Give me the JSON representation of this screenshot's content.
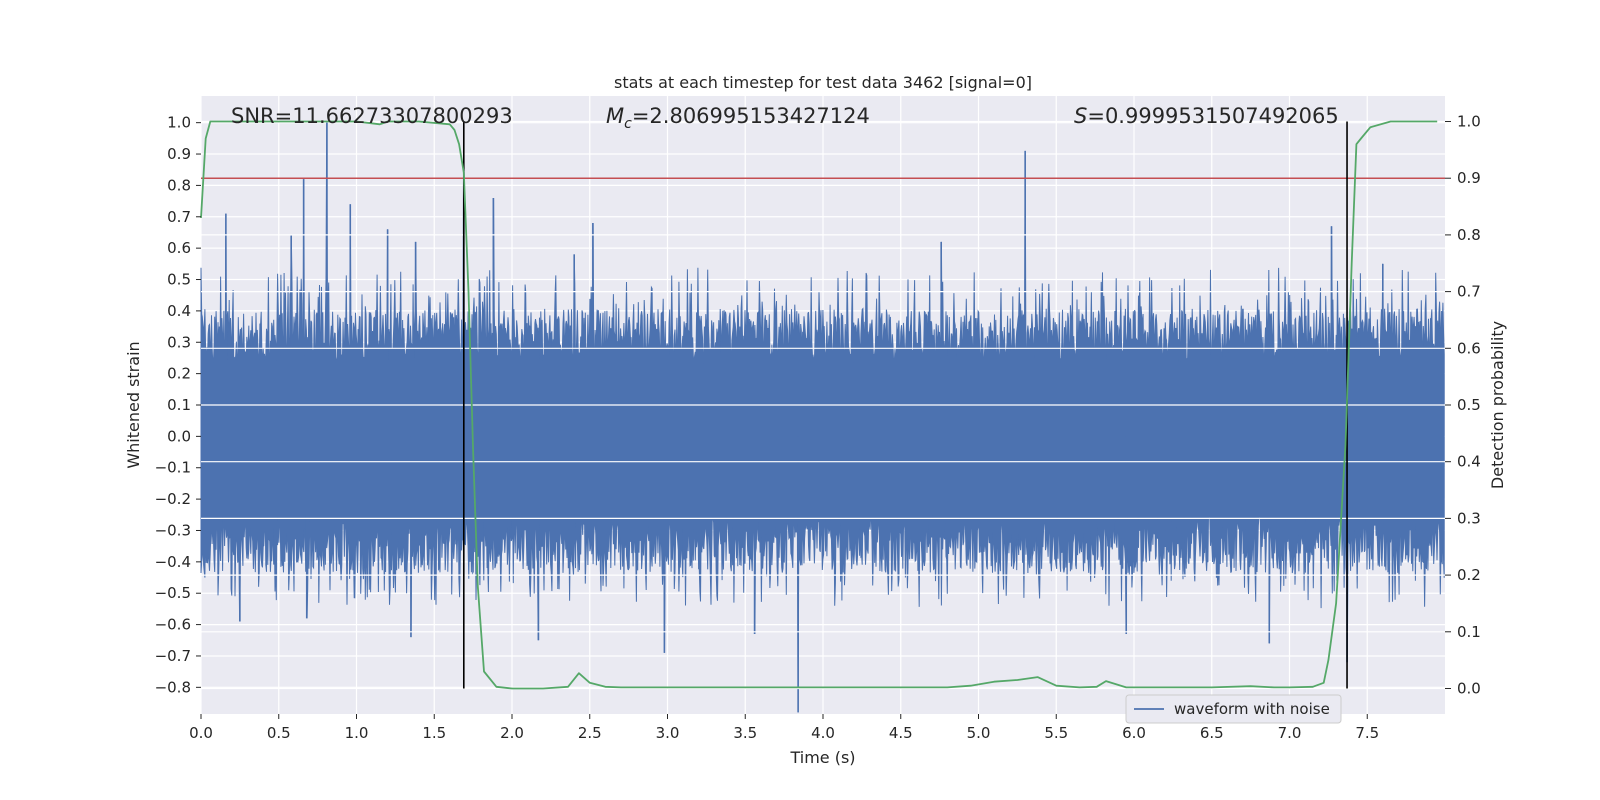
{
  "chart_data": {
    "type": "line",
    "title": "stats at each timestep for test data 3462 [signal=0]",
    "xlabel": "Time (s)",
    "ylabel_left": "Whitened strain",
    "ylabel_right": "Detection probability",
    "xlim": [
      0.0,
      8.0
    ],
    "ylim_left": [
      -0.885,
      1.085
    ],
    "ylim_right": [
      -0.045,
      1.045
    ],
    "x_ticks": [
      "0.0",
      "0.5",
      "1.0",
      "1.5",
      "2.0",
      "2.5",
      "3.0",
      "3.5",
      "4.0",
      "4.5",
      "5.0",
      "5.5",
      "6.0",
      "6.5",
      "7.0",
      "7.5"
    ],
    "y_ticks_left": [
      "1.0",
      "0.9",
      "0.8",
      "0.7",
      "0.6",
      "0.5",
      "0.4",
      "0.3",
      "0.2",
      "0.1",
      "0.0",
      "−0.1",
      "−0.2",
      "−0.3",
      "−0.4",
      "−0.5",
      "−0.6",
      "−0.7",
      "−0.8"
    ],
    "y_ticks_right": [
      "1.0",
      "0.9",
      "0.8",
      "0.7",
      "0.6",
      "0.5",
      "0.4",
      "0.3",
      "0.2",
      "0.1",
      "0.0"
    ],
    "grid": true,
    "legend_position": "lower-right",
    "annotations": {
      "snr": "SNR=11.66273307800293",
      "mc_symbol": "M",
      "mc_sub": "c",
      "mc_value": "=2.806995153427124",
      "s_symbol": "S",
      "s_value": "=0.9999531507492065"
    },
    "vertical_markers_x": [
      1.69,
      7.37
    ],
    "threshold_probability": 0.9,
    "series": [
      {
        "name": "waveform with noise",
        "color": "#4c72b0",
        "noise_envelope": {
          "typical_max": 0.42,
          "typical_min": -0.45
        },
        "peaks": [
          {
            "x": 0.16,
            "y": 0.71
          },
          {
            "x": 0.58,
            "y": 0.64
          },
          {
            "x": 0.66,
            "y": 0.82
          },
          {
            "x": 0.81,
            "y": 1.0
          },
          {
            "x": 0.96,
            "y": 0.74
          },
          {
            "x": 1.2,
            "y": 0.66
          },
          {
            "x": 1.38,
            "y": 0.62
          },
          {
            "x": 1.69,
            "y": 0.85
          },
          {
            "x": 1.88,
            "y": 0.76
          },
          {
            "x": 2.4,
            "y": 0.58
          },
          {
            "x": 2.52,
            "y": 0.68
          },
          {
            "x": 4.76,
            "y": 0.62
          },
          {
            "x": 5.3,
            "y": 0.91
          },
          {
            "x": 7.27,
            "y": 0.67
          },
          {
            "x": 7.6,
            "y": 0.55
          }
        ],
        "troughs": [
          {
            "x": 0.25,
            "y": -0.59
          },
          {
            "x": 0.68,
            "y": -0.58
          },
          {
            "x": 1.35,
            "y": -0.64
          },
          {
            "x": 2.17,
            "y": -0.65
          },
          {
            "x": 2.98,
            "y": -0.69
          },
          {
            "x": 3.56,
            "y": -0.63
          },
          {
            "x": 3.84,
            "y": -0.88
          },
          {
            "x": 5.95,
            "y": -0.63
          },
          {
            "x": 6.87,
            "y": -0.66
          },
          {
            "x": 7.37,
            "y": -0.72
          }
        ]
      },
      {
        "name": "",
        "color": "#55a868",
        "x": [
          0.0,
          0.03,
          0.06,
          0.1,
          0.2,
          0.3,
          0.5,
          0.8,
          1.0,
          1.15,
          1.2,
          1.4,
          1.6,
          1.63,
          1.66,
          1.69,
          1.72,
          1.75,
          1.78,
          1.82,
          1.9,
          2.0,
          2.1,
          2.2,
          2.36,
          2.43,
          2.5,
          2.6,
          2.7,
          2.8,
          2.9,
          3.0,
          3.1,
          3.2,
          3.4,
          3.6,
          3.8,
          4.0,
          4.1,
          4.2,
          4.4,
          4.6,
          4.8,
          4.95,
          5.1,
          5.25,
          5.38,
          5.5,
          5.65,
          5.76,
          5.82,
          5.88,
          5.95,
          6.1,
          6.3,
          6.5,
          6.75,
          6.9,
          7.0,
          7.15,
          7.22,
          7.25,
          7.3,
          7.36,
          7.4,
          7.43,
          7.46,
          7.52,
          7.65,
          7.8,
          7.95
        ],
        "y": [
          0.83,
          0.97,
          1.0,
          1.0,
          1.0,
          1.0,
          1.0,
          1.0,
          1.0,
          0.995,
          1.0,
          1.0,
          0.995,
          0.985,
          0.96,
          0.91,
          0.7,
          0.42,
          0.18,
          0.03,
          0.003,
          0.0,
          0.0,
          0.0,
          0.003,
          0.027,
          0.01,
          0.003,
          0.002,
          0.002,
          0.002,
          0.002,
          0.002,
          0.002,
          0.002,
          0.002,
          0.002,
          0.002,
          0.002,
          0.002,
          0.002,
          0.002,
          0.002,
          0.005,
          0.012,
          0.015,
          0.02,
          0.005,
          0.002,
          0.003,
          0.013,
          0.008,
          0.002,
          0.002,
          0.002,
          0.002,
          0.004,
          0.002,
          0.002,
          0.003,
          0.01,
          0.05,
          0.15,
          0.43,
          0.75,
          0.96,
          0.97,
          0.99,
          1.0,
          1.0,
          1.0
        ]
      }
    ]
  }
}
